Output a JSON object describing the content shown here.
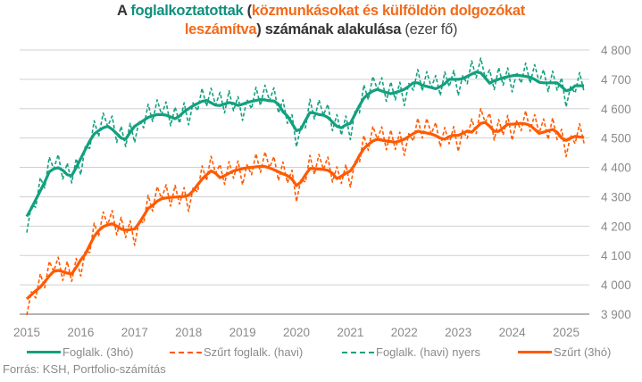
{
  "title": {
    "part1": "A ",
    "part2": "foglalkoztatottak",
    "part3": " (",
    "part4": "közmunkásokat és külföldön dolgozókat",
    "part5": "leszámítva",
    "part6": ") számának alakulása",
    "part7": " (ezer fő)"
  },
  "source": "Forrás: KSH, Portfolio-számítás",
  "colors": {
    "green": "#13a07f",
    "orange": "#ff5a00",
    "title_teal": "#0f8f7c",
    "title_orange": "#f26a1a"
  },
  "chart_data": {
    "type": "line",
    "title": "A foglalkoztatottak (közmunkásokat és külföldön dolgozókat leszámítva) számának alakulása (ezer fő)",
    "x_start": "2015-01",
    "x_frequency": "monthly",
    "xlim": [
      2015,
      2025.9
    ],
    "ylim": [
      3900,
      4800
    ],
    "x_ticks": [
      "2015",
      "2016",
      "2017",
      "2018",
      "2019",
      "2020",
      "2021",
      "2022",
      "2023",
      "2024",
      "2025"
    ],
    "y_ticks": [
      "3 900",
      "4 000",
      "4 100",
      "4 200",
      "4 300",
      "4 400",
      "4 500",
      "4 600",
      "4 700",
      "4 800"
    ],
    "y_tick_values": [
      3900,
      4000,
      4100,
      4200,
      4300,
      4400,
      4500,
      4600,
      4700,
      4800
    ],
    "grid": true,
    "legend_position": "bottom",
    "series": [
      {
        "name": "Foglalk. (3hó)",
        "color": "#13a07f",
        "style": "solid",
        "values": [
          4233,
          4260,
          4290,
          4320,
          4350,
          4385,
          4395,
          4399,
          4390,
          4375,
          4372,
          4400,
          4430,
          4460,
          4490,
          4514,
          4525,
          4535,
          4540,
          4530,
          4515,
          4500,
          4496,
          4520,
          4540,
          4550,
          4560,
          4570,
          4576,
          4580,
          4580,
          4578,
          4572,
          4566,
          4575,
          4590,
          4600,
          4610,
          4618,
          4625,
          4628,
          4620,
          4612,
          4611,
          4616,
          4621,
          4618,
          4611,
          4615,
          4621,
          4625,
          4628,
          4631,
          4630,
          4627,
          4626,
          4615,
          4590,
          4575,
          4550,
          4525,
          4530,
          4560,
          4587,
          4585,
          4580,
          4578,
          4570,
          4555,
          4540,
          4535,
          4545,
          4550,
          4580,
          4610,
          4636,
          4650,
          4660,
          4666,
          4660,
          4655,
          4651,
          4655,
          4660,
          4666,
          4676,
          4688,
          4688,
          4680,
          4676,
          4672,
          4668,
          4675,
          4685,
          4700,
          4700,
          4700,
          4702,
          4710,
          4718,
          4725,
          4722,
          4705,
          4687,
          4695,
          4700,
          4705,
          4709,
          4712,
          4714,
          4712,
          4710,
          4707,
          4700,
          4690,
          4688,
          4688,
          4688,
          4688,
          4675,
          4661,
          4665,
          4678,
          4678,
          4678
        ]
      },
      {
        "name": "Szűrt foglalk. (havi)",
        "color": "#ff5a00",
        "style": "dashed",
        "values": [
          3897,
          3976,
          3955,
          4037,
          3990,
          4080,
          4046,
          4094,
          4015,
          4080,
          4012,
          4090,
          4030,
          4114,
          4110,
          4210,
          4165,
          4248,
          4204,
          4253,
          4170,
          4230,
          4161,
          4218,
          4135,
          4220,
          4210,
          4305,
          4251,
          4335,
          4293,
          4341,
          4268,
          4339,
          4275,
          4331,
          4250,
          4330,
          4316,
          4405,
          4355,
          4438,
          4380,
          4410,
          4342,
          4420,
          4363,
          4422,
          4341,
          4409,
          4375,
          4447,
          4383,
          4453,
          4398,
          4437,
          4355,
          4418,
          4347,
          4390,
          4283,
          4360,
          4350,
          4441,
          4376,
          4444,
          4393,
          4435,
          4350,
          4402,
          4345,
          4410,
          4333,
          4420,
          4415,
          4509,
          4458,
          4540,
          4496,
          4538,
          4460,
          4528,
          4461,
          4520,
          4441,
          4515,
          4490,
          4568,
          4500,
          4567,
          4514,
          4553,
          4470,
          4536,
          4480,
          4539,
          4454,
          4526,
          4499,
          4565,
          4515,
          4600,
          4553,
          4585,
          4493,
          4563,
          4510,
          4577,
          4492,
          4559,
          4525,
          4593,
          4523,
          4580,
          4516,
          4565,
          4495,
          4569,
          4495,
          4530,
          4437,
          4510,
          4481,
          4549,
          4482
        ]
      },
      {
        "name": "Foglalk. (havi) nyers",
        "color": "#13a07f",
        "style": "dashed",
        "values": [
          4178,
          4270,
          4265,
          4365,
          4330,
          4435,
          4395,
          4444,
          4360,
          4415,
          4347,
          4430,
          4375,
          4470,
          4465,
          4559,
          4505,
          4585,
          4540,
          4575,
          4485,
          4540,
          4471,
          4550,
          4485,
          4560,
          4535,
          4615,
          4556,
          4630,
          4580,
          4623,
          4542,
          4606,
          4550,
          4620,
          4545,
          4620,
          4593,
          4670,
          4608,
          4670,
          4612,
          4656,
          4586,
          4661,
          4593,
          4641,
          4560,
          4631,
          4600,
          4673,
          4611,
          4680,
          4627,
          4671,
          4585,
          4630,
          4550,
          4580,
          4470,
          4540,
          4535,
          4632,
          4565,
          4630,
          4578,
          4615,
          4525,
          4580,
          4510,
          4575,
          4495,
          4590,
          4585,
          4681,
          4630,
          4710,
          4666,
          4705,
          4625,
          4691,
          4630,
          4690,
          4611,
          4686,
          4663,
          4733,
          4660,
          4726,
          4672,
          4713,
          4645,
          4725,
          4675,
          4730,
          4645,
          4712,
          4685,
          4763,
          4705,
          4772,
          4705,
          4732,
          4665,
          4740,
          4680,
          4739,
          4657,
          4724,
          4687,
          4755,
          4687,
          4750,
          4690,
          4733,
          4658,
          4728,
          4663,
          4705,
          4606,
          4675,
          4653,
          4723,
          4658
        ]
      },
      {
        "name": "Szűrt (3hó)",
        "color": "#ff5a00",
        "style": "solid",
        "values": [
          3952,
          3966,
          3980,
          3992,
          4010,
          4030,
          4046,
          4049,
          4045,
          4040,
          4037,
          4060,
          4085,
          4104,
          4135,
          4165,
          4185,
          4198,
          4204,
          4208,
          4200,
          4190,
          4186,
          4188,
          4190,
          4210,
          4235,
          4260,
          4271,
          4285,
          4293,
          4296,
          4298,
          4299,
          4300,
          4301,
          4305,
          4320,
          4341,
          4360,
          4375,
          4388,
          4380,
          4365,
          4372,
          4380,
          4388,
          4392,
          4396,
          4399,
          4400,
          4402,
          4403,
          4403,
          4398,
          4392,
          4385,
          4378,
          4372,
          4360,
          4338,
          4350,
          4375,
          4396,
          4396,
          4394,
          4393,
          4390,
          4380,
          4362,
          4370,
          4380,
          4388,
          4410,
          4440,
          4464,
          4478,
          4490,
          4496,
          4493,
          4490,
          4488,
          4486,
          4490,
          4496,
          4505,
          4515,
          4523,
          4520,
          4517,
          4514,
          4508,
          4500,
          4496,
          4505,
          4509,
          4509,
          4516,
          4524,
          4520,
          4535,
          4550,
          4553,
          4540,
          4523,
          4523,
          4535,
          4547,
          4547,
          4549,
          4550,
          4548,
          4543,
          4530,
          4516,
          4520,
          4525,
          4529,
          4520,
          4500,
          4492,
          4500,
          4506,
          4504,
          4502
        ]
      }
    ]
  }
}
